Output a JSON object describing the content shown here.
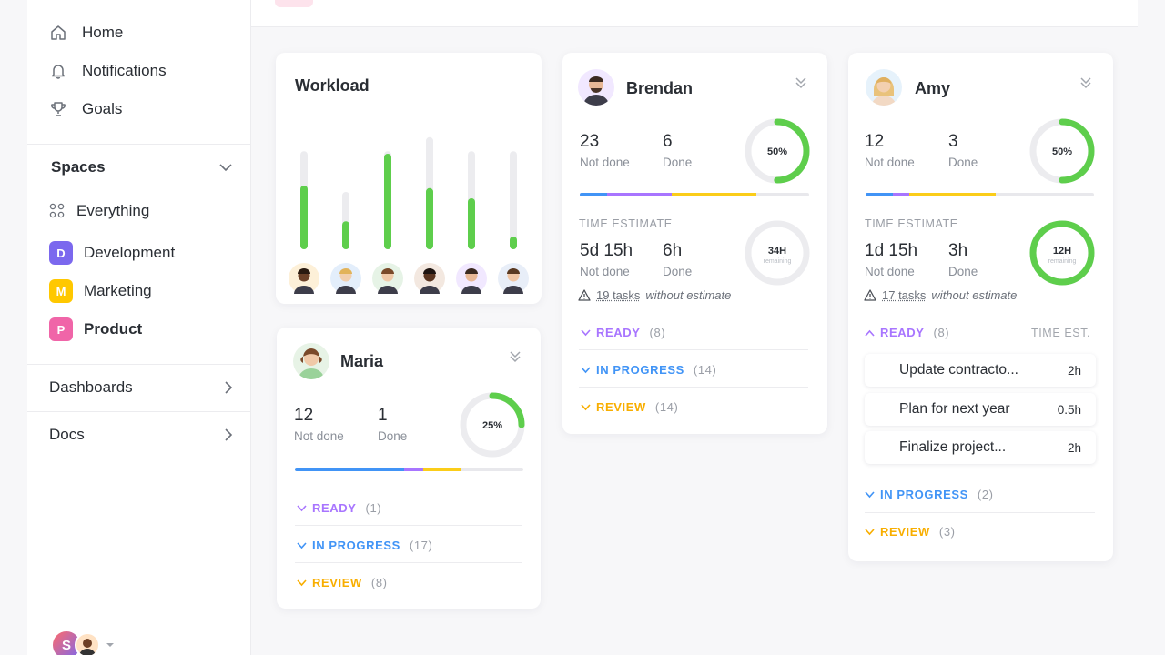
{
  "sidebar": {
    "nav": [
      {
        "label": "Home",
        "icon": "home-icon"
      },
      {
        "label": "Notifications",
        "icon": "bell-icon"
      },
      {
        "label": "Goals",
        "icon": "trophy-icon"
      }
    ],
    "spaces_title": "Spaces",
    "everything_label": "Everything",
    "spaces": [
      {
        "letter": "D",
        "label": "Development",
        "color": "#7b68ee"
      },
      {
        "letter": "M",
        "label": "Marketing",
        "color": "#ffc800"
      },
      {
        "letter": "P",
        "label": "Product",
        "color": "#f065a8"
      }
    ],
    "dashboards_label": "Dashboards",
    "docs_label": "Docs",
    "user_initial": "S"
  },
  "workload": {
    "title": "Workload",
    "bars": [
      {
        "total": 0.77,
        "done": 0.5
      },
      {
        "total": 0.45,
        "done": 0.22
      },
      {
        "total": 0.77,
        "done": 0.75
      },
      {
        "total": 0.88,
        "done": 0.48
      },
      {
        "total": 0.77,
        "done": 0.4
      },
      {
        "total": 0.77,
        "done": 0.1
      }
    ]
  },
  "maria": {
    "name": "Maria",
    "not_done": "12",
    "not_done_label": "Not done",
    "done": "1",
    "done_label": "Done",
    "percent": "25%",
    "percent_value": 25,
    "statuses": [
      {
        "label": "READY",
        "count": "(1)",
        "color": "#a875ff"
      },
      {
        "label": "IN PROGRESS",
        "count": "(17)",
        "color": "#4194f6"
      },
      {
        "label": "REVIEW",
        "count": "(8)",
        "color": "#f8ae00"
      }
    ]
  },
  "brendan": {
    "name": "Brendan",
    "not_done": "23",
    "not_done_label": "Not done",
    "done": "6",
    "done_label": "Done",
    "percent": "50%",
    "percent_value": 50,
    "time_caption": "TIME ESTIMATE",
    "time_not_done": "5d 15h",
    "time_done": "6h",
    "time_total": "34H",
    "time_sub": "remaining",
    "time_percent_value": 0,
    "warn_count": "19 tasks",
    "warn_text": "without estimate",
    "statuses": [
      {
        "label": "READY",
        "count": "(8)",
        "color": "#a875ff"
      },
      {
        "label": "IN PROGRESS",
        "count": "(14)",
        "color": "#4194f6"
      },
      {
        "label": "REVIEW",
        "count": "(14)",
        "color": "#f8ae00"
      }
    ]
  },
  "amy": {
    "name": "Amy",
    "not_done": "12",
    "not_done_label": "Not done",
    "done": "3",
    "done_label": "Done",
    "percent": "50%",
    "percent_value": 50,
    "time_caption": "TIME ESTIMATE",
    "time_not_done": "1d 15h",
    "time_done": "3h",
    "time_total": "12H",
    "time_sub": "remaining",
    "time_percent_value": 100,
    "warn_count": "17 tasks",
    "warn_text": "without estimate",
    "ready_label": "READY",
    "ready_count": "(8)",
    "time_est_label": "TIME EST.",
    "tasks": [
      {
        "name": "Update contracto...",
        "hours": "2h"
      },
      {
        "name": "Plan for next year",
        "hours": "0.5h"
      },
      {
        "name": "Finalize project...",
        "hours": "2h"
      }
    ],
    "statuses": [
      {
        "label": "IN PROGRESS",
        "count": "(2)",
        "color": "#4194f6"
      },
      {
        "label": "REVIEW",
        "count": "(3)",
        "color": "#f8ae00"
      }
    ]
  },
  "colors": {
    "green": "#5ece4c",
    "track": "#ececef",
    "purple": "#a875ff",
    "blue": "#4194f6",
    "yellow": "#fbcd19"
  }
}
